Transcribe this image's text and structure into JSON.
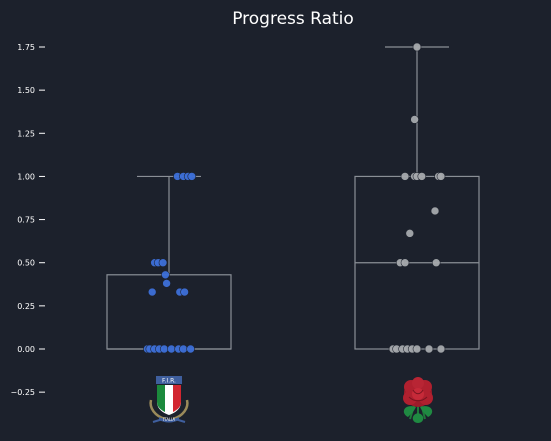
{
  "chart_data": {
    "type": "box",
    "title": "Progress Ratio",
    "xlabel": "",
    "ylabel": "",
    "ylim": [
      -0.3,
      1.9
    ],
    "yticks": [
      -0.25,
      0.0,
      0.25,
      0.5,
      0.75,
      1.0,
      1.25,
      1.5,
      1.75
    ],
    "ytick_labels": [
      "−0.25",
      "0.00",
      "0.25",
      "0.50",
      "0.75",
      "1.00",
      "1.25",
      "1.50",
      "1.75"
    ],
    "grid": false,
    "categories": [
      "Italy",
      "England"
    ],
    "category_logos": [
      "italy-fir-crest",
      "england-red-rose"
    ],
    "series": [
      {
        "box": {
          "whisker_low": 0.0,
          "q1": 0.0,
          "median": 0.0,
          "q3": 0.43,
          "whisker_high": 1.0
        },
        "point_color": "#3d6fd8",
        "points": [
          {
            "dx": -0.18,
            "y": 0.0
          },
          {
            "dx": -0.16,
            "y": 0.0
          },
          {
            "dx": -0.12,
            "y": 0.0
          },
          {
            "dx": -0.08,
            "y": 0.0
          },
          {
            "dx": -0.04,
            "y": 0.0
          },
          {
            "dx": 0.02,
            "y": 0.0
          },
          {
            "dx": 0.08,
            "y": 0.0
          },
          {
            "dx": 0.12,
            "y": 0.0
          },
          {
            "dx": 0.18,
            "y": 0.0
          },
          {
            "dx": -0.14,
            "y": 0.33
          },
          {
            "dx": -0.02,
            "y": 0.38
          },
          {
            "dx": -0.03,
            "y": 0.43
          },
          {
            "dx": 0.09,
            "y": 0.33
          },
          {
            "dx": 0.13,
            "y": 0.33
          },
          {
            "dx": -0.12,
            "y": 0.5
          },
          {
            "dx": -0.09,
            "y": 0.5
          },
          {
            "dx": -0.05,
            "y": 0.5
          },
          {
            "dx": 0.07,
            "y": 1.0
          },
          {
            "dx": 0.12,
            "y": 1.0
          },
          {
            "dx": 0.16,
            "y": 1.0
          },
          {
            "dx": 0.19,
            "y": 1.0
          }
        ]
      },
      {
        "box": {
          "whisker_low": 0.0,
          "q1": 0.0,
          "median": 0.5,
          "q3": 1.0,
          "whisker_high": 1.75
        },
        "point_color": "#a6a9ad",
        "points": [
          {
            "dx": -0.2,
            "y": 0.0
          },
          {
            "dx": -0.17,
            "y": 0.0
          },
          {
            "dx": -0.12,
            "y": 0.0
          },
          {
            "dx": -0.08,
            "y": 0.0
          },
          {
            "dx": -0.04,
            "y": 0.0
          },
          {
            "dx": 0.0,
            "y": 0.0
          },
          {
            "dx": 0.1,
            "y": 0.0
          },
          {
            "dx": 0.2,
            "y": 0.0
          },
          {
            "dx": -0.14,
            "y": 0.5
          },
          {
            "dx": -0.1,
            "y": 0.5
          },
          {
            "dx": 0.16,
            "y": 0.5
          },
          {
            "dx": -0.06,
            "y": 0.67
          },
          {
            "dx": 0.15,
            "y": 0.8
          },
          {
            "dx": -0.1,
            "y": 1.0
          },
          {
            "dx": -0.02,
            "y": 1.0
          },
          {
            "dx": 0.0,
            "y": 1.0
          },
          {
            "dx": 0.04,
            "y": 1.0
          },
          {
            "dx": 0.18,
            "y": 1.0
          },
          {
            "dx": 0.2,
            "y": 1.0
          },
          {
            "dx": -0.02,
            "y": 1.33
          },
          {
            "dx": 0.0,
            "y": 1.75
          }
        ]
      }
    ]
  },
  "colors": {
    "background": "#1c212c",
    "text": "#ffffff",
    "box_line": "#8a8f96"
  }
}
